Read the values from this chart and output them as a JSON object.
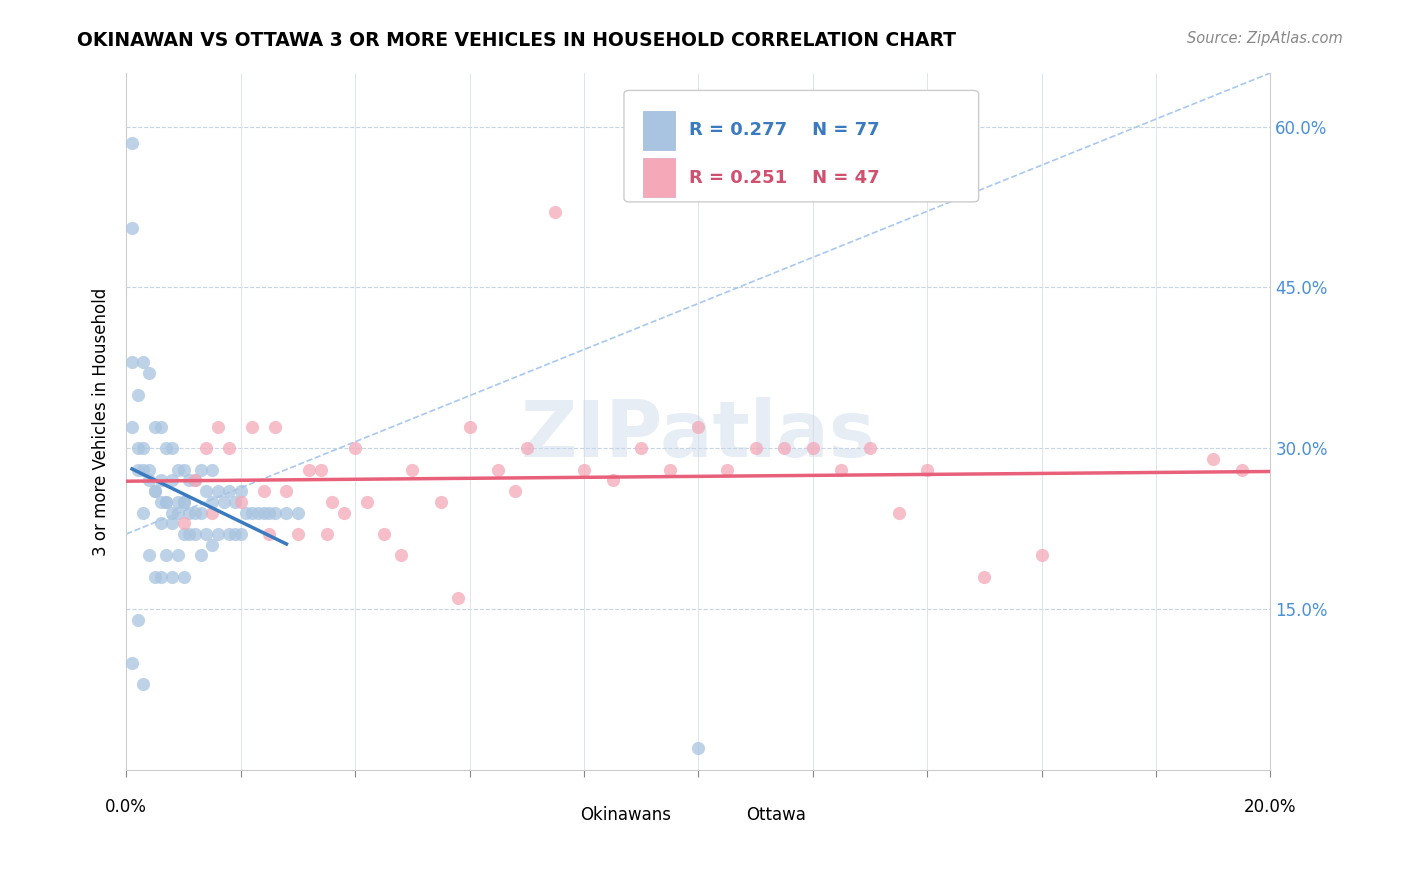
{
  "title": "OKINAWAN VS OTTAWA 3 OR MORE VEHICLES IN HOUSEHOLD CORRELATION CHART",
  "source": "Source: ZipAtlas.com",
  "ylabel": "3 or more Vehicles in Household",
  "x_min": 0.0,
  "x_max": 0.2,
  "y_min": 0.0,
  "y_max": 0.65,
  "okinawan_color": "#a8c4e0",
  "ottawa_color": "#f4a8b8",
  "trend_okinawan_color": "#3a7abf",
  "trend_ottawa_color": "#e8607a",
  "ref_line_color": "#a8c8f0",
  "watermark": "ZIPatlas",
  "okinawan_x": [
    0.001,
    0.001,
    0.001,
    0.001,
    0.002,
    0.002,
    0.002,
    0.003,
    0.003,
    0.003,
    0.003,
    0.004,
    0.004,
    0.004,
    0.005,
    0.005,
    0.005,
    0.006,
    0.006,
    0.006,
    0.006,
    0.007,
    0.007,
    0.007,
    0.008,
    0.008,
    0.008,
    0.008,
    0.009,
    0.009,
    0.009,
    0.01,
    0.01,
    0.01,
    0.01,
    0.011,
    0.011,
    0.012,
    0.012,
    0.013,
    0.013,
    0.013,
    0.014,
    0.014,
    0.015,
    0.015,
    0.015,
    0.016,
    0.016,
    0.017,
    0.018,
    0.018,
    0.019,
    0.019,
    0.02,
    0.02,
    0.021,
    0.022,
    0.023,
    0.024,
    0.025,
    0.026,
    0.028,
    0.03,
    0.001,
    0.002,
    0.003,
    0.004,
    0.005,
    0.006,
    0.007,
    0.008,
    0.009,
    0.01,
    0.011,
    0.012,
    0.1
  ],
  "okinawan_y": [
    0.585,
    0.505,
    0.38,
    0.1,
    0.35,
    0.28,
    0.14,
    0.38,
    0.3,
    0.24,
    0.08,
    0.37,
    0.28,
    0.2,
    0.32,
    0.26,
    0.18,
    0.32,
    0.27,
    0.23,
    0.18,
    0.3,
    0.25,
    0.2,
    0.3,
    0.27,
    0.23,
    0.18,
    0.28,
    0.25,
    0.2,
    0.28,
    0.25,
    0.22,
    0.18,
    0.27,
    0.22,
    0.27,
    0.22,
    0.28,
    0.24,
    0.2,
    0.26,
    0.22,
    0.28,
    0.25,
    0.21,
    0.26,
    0.22,
    0.25,
    0.26,
    0.22,
    0.25,
    0.22,
    0.26,
    0.22,
    0.24,
    0.24,
    0.24,
    0.24,
    0.24,
    0.24,
    0.24,
    0.24,
    0.32,
    0.3,
    0.28,
    0.27,
    0.26,
    0.25,
    0.25,
    0.24,
    0.24,
    0.25,
    0.24,
    0.24,
    0.02
  ],
  "ottawa_x": [
    0.01,
    0.012,
    0.014,
    0.015,
    0.016,
    0.018,
    0.02,
    0.022,
    0.024,
    0.025,
    0.026,
    0.028,
    0.03,
    0.032,
    0.034,
    0.035,
    0.036,
    0.038,
    0.04,
    0.042,
    0.045,
    0.048,
    0.05,
    0.055,
    0.058,
    0.06,
    0.065,
    0.068,
    0.07,
    0.075,
    0.08,
    0.085,
    0.09,
    0.095,
    0.1,
    0.105,
    0.11,
    0.115,
    0.12,
    0.125,
    0.13,
    0.135,
    0.14,
    0.15,
    0.16,
    0.19,
    0.195
  ],
  "ottawa_y": [
    0.23,
    0.27,
    0.3,
    0.24,
    0.32,
    0.3,
    0.25,
    0.32,
    0.26,
    0.22,
    0.32,
    0.26,
    0.22,
    0.28,
    0.28,
    0.22,
    0.25,
    0.24,
    0.3,
    0.25,
    0.22,
    0.2,
    0.28,
    0.25,
    0.16,
    0.32,
    0.28,
    0.26,
    0.3,
    0.52,
    0.28,
    0.27,
    0.3,
    0.28,
    0.32,
    0.28,
    0.3,
    0.3,
    0.3,
    0.28,
    0.3,
    0.24,
    0.28,
    0.18,
    0.2,
    0.29,
    0.28
  ]
}
